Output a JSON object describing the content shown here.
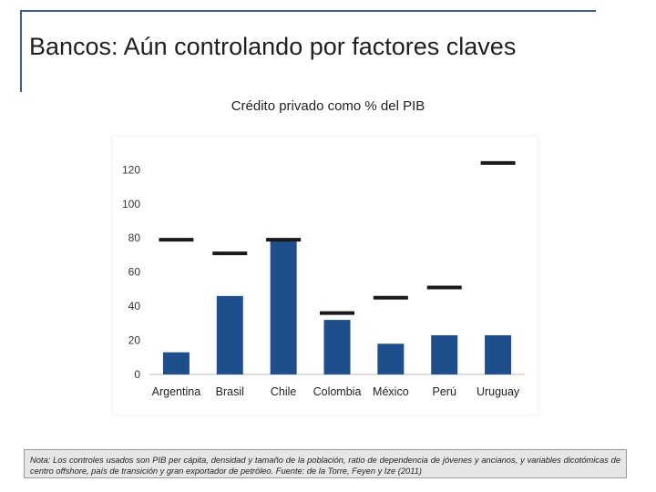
{
  "slide": {
    "title": "Bancos: Aún controlando por factores claves",
    "note": "Nota: Los controles usados son PIB per cápita, densidad y tamaño de la población, ratio de dependencia de jóvenes y ancianos, y variables dicotómicas de centro offshore, país de transición y gran exportador de petróleo. Fuente: de la Torre, Feyen y Ize (2011)"
  },
  "colors": {
    "bar": "#1f4e8c",
    "benchmark": "#1a1a1a",
    "axis": "#bfbfbf",
    "frame": "#3a5f8a",
    "note_bg": "#e6e6e6"
  },
  "chart_data": {
    "type": "bar",
    "title": "Crédito privado como % del PIB",
    "xlabel": "",
    "ylabel": "",
    "categories": [
      "Argentina",
      "Brasil",
      "Chile",
      "Colombia",
      "México",
      "Perú",
      "Uruguay"
    ],
    "series": [
      {
        "values": [
          13,
          46,
          79,
          32,
          18,
          23,
          23
        ]
      },
      {
        "style": "marker",
        "values": [
          79,
          71,
          79,
          36,
          45,
          51,
          124
        ]
      }
    ],
    "ylim": [
      0,
      130
    ],
    "yticks": [
      0,
      20,
      40,
      60,
      80,
      100,
      120
    ],
    "grid": false,
    "legend": "none"
  }
}
